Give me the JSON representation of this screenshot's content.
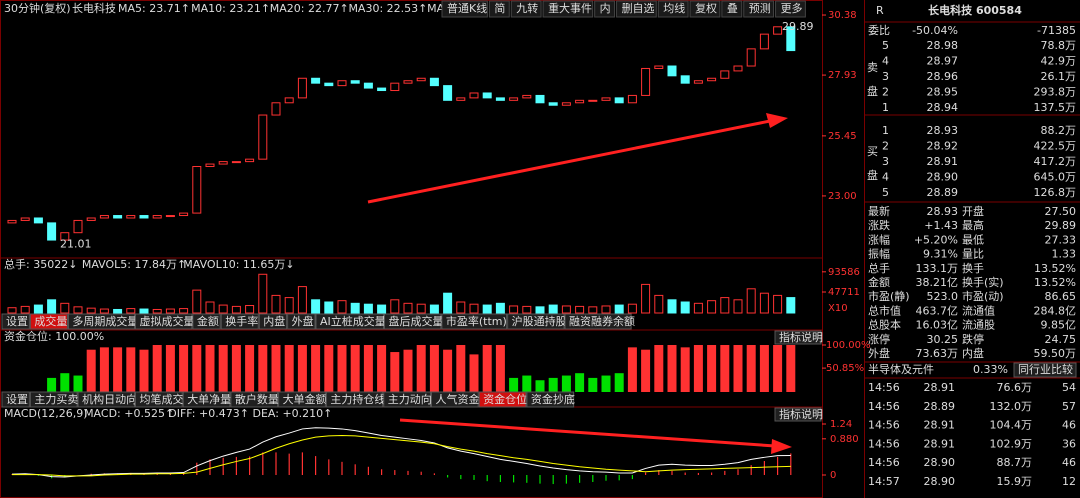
{
  "header": {
    "period": "30分钟(复权)",
    "stock": "长电科技",
    "ma_labels": [
      "MA5: 23.71↑",
      "MA10: 23.21↑",
      "MA20: 22.77↑",
      "MA30: 22.53↑",
      "MA60: 22"
    ],
    "ma_colors": [
      "#ffffff",
      "#ffff00",
      "#ff00ff",
      "#00ff00",
      "#4aa3ff"
    ],
    "buttons": [
      "普通K线",
      "简",
      "九转",
      "重大事件",
      "内",
      "删自选",
      "均线",
      "复权",
      "叠",
      "预测",
      "更多"
    ]
  },
  "price_chart": {
    "type": "candlestick",
    "ylim": [
      20.59,
      30.83
    ],
    "yticks": [
      30.38,
      27.93,
      25.45,
      {
        "value": 23,
        "label": "23.00"
      }
    ],
    "high": 29.89,
    "low": 21.01,
    "up_color": "#ff3232",
    "down_color": "#54ffff",
    "closes": [
      22.0,
      22.1,
      21.9,
      21.2,
      21.5,
      22.0,
      22.1,
      22.2,
      22.1,
      22.2,
      22.1,
      22.2,
      22.2,
      22.3,
      24.2,
      24.3,
      24.4,
      24.4,
      24.5,
      26.3,
      26.8,
      27.0,
      27.8,
      27.6,
      27.5,
      27.7,
      27.6,
      27.4,
      27.3,
      27.6,
      27.7,
      27.8,
      27.5,
      26.9,
      27.0,
      27.2,
      27.0,
      26.9,
      27.0,
      27.1,
      26.8,
      26.7,
      26.8,
      26.9,
      26.9,
      27.0,
      26.8,
      27.1,
      28.2,
      28.3,
      27.9,
      27.6,
      27.7,
      27.8,
      28.1,
      28.3,
      29.0,
      29.6,
      29.9,
      28.93
    ],
    "first_open": 21.9
  },
  "volume_chart": {
    "type": "bar",
    "labels": [
      "总手: 35022↓",
      "MAVOL5: 17.84万↑",
      "MAVOL10: 11.65万↓"
    ],
    "label_colors": [
      "#ff3232",
      "#ffff00",
      "#ffffff"
    ],
    "ylim": [
      0,
      100000
    ],
    "yticks": [
      93586,
      47711
    ],
    "unit": "X10",
    "values": [
      12000,
      15000,
      18000,
      30000,
      22000,
      14000,
      11000,
      9000,
      8000,
      10000,
      9000,
      8000,
      9000,
      10000,
      52000,
      25000,
      18000,
      15000,
      17000,
      88000,
      40000,
      35000,
      60000,
      30000,
      25000,
      28000,
      22000,
      20000,
      18000,
      30000,
      22000,
      20000,
      18000,
      45000,
      25000,
      20000,
      18000,
      22000,
      16000,
      15000,
      14000,
      18000,
      16000,
      15000,
      14000,
      16000,
      18000,
      20000,
      65000,
      40000,
      30000,
      25000,
      22000,
      28000,
      35000,
      30000,
      55000,
      45000,
      40000,
      35022
    ],
    "tabs": [
      "设置",
      "成交量",
      "多周期成交量",
      "虚拟成交量",
      "金额",
      "换手率",
      "内盘",
      "外盘",
      "AI立桩成交量",
      "盘后成交量",
      "市盈率(ttm)",
      "沪股通持股",
      "融资融券余额"
    ],
    "active_tab": 1
  },
  "fund_chart": {
    "type": "bar",
    "label": "资金仓位: 100.00%",
    "help": "指标说明",
    "ylim": [
      0,
      100
    ],
    "yticks": [
      {
        "value": 100,
        "label": "100.00%"
      },
      {
        "value": 50.85,
        "label": "50.85%"
      }
    ],
    "high_color": "#ff3232",
    "low_color": "#00e000",
    "values": [
      0,
      0,
      0,
      30,
      40,
      35,
      90,
      95,
      95,
      95,
      90,
      100,
      100,
      100,
      100,
      100,
      100,
      100,
      100,
      100,
      100,
      100,
      100,
      100,
      100,
      100,
      100,
      100,
      100,
      85,
      90,
      100,
      100,
      90,
      100,
      80,
      100,
      100,
      30,
      35,
      25,
      30,
      35,
      40,
      30,
      35,
      40,
      95,
      90,
      100,
      100,
      95,
      100,
      100,
      100,
      100,
      100,
      100,
      100,
      100
    ],
    "tabs": [
      "设置",
      "主力买卖",
      "机构日动向",
      "均笔成交",
      "大单净量",
      "散户数量",
      "大单金额",
      "主力持仓线",
      "主力动向",
      "人气资金",
      "资金仓位",
      "资金抄底"
    ],
    "active_tab": 10
  },
  "macd_chart": {
    "type": "line",
    "labels": [
      "MACD(12,26,9)",
      "MACD: +0.525↑",
      "DIFF: +0.473↑",
      "DEA: +0.210↑"
    ],
    "label_colors": [
      "#ffffff",
      "#ff3232",
      "#ffffff",
      "#ffff00"
    ],
    "help": "指标说明",
    "ylim": [
      -0.535,
      1.386
    ],
    "yticks": [
      1.24,
      {
        "value": 0.88,
        "label": "0.880"
      },
      0
    ],
    "histogram": [
      0.02,
      0.03,
      -0.02,
      -0.08,
      -0.06,
      0.0,
      0.03,
      0.04,
      0.04,
      0.05,
      0.04,
      0.04,
      0.04,
      0.05,
      0.3,
      0.38,
      0.42,
      0.44,
      0.45,
      0.55,
      0.55,
      0.52,
      0.55,
      0.46,
      0.38,
      0.32,
      0.26,
      0.2,
      0.14,
      0.12,
      0.1,
      0.08,
      0.04,
      -0.06,
      -0.1,
      -0.12,
      -0.15,
      -0.17,
      -0.18,
      -0.19,
      -0.21,
      -0.22,
      -0.21,
      -0.19,
      -0.17,
      -0.14,
      -0.13,
      -0.1,
      0.06,
      0.12,
      0.1,
      0.06,
      0.05,
      0.06,
      0.1,
      0.14,
      0.24,
      0.34,
      0.44,
      0.525
    ],
    "series": [
      {
        "name": "DIFF",
        "color": "#ffffff",
        "values": [
          0.02,
          0.03,
          0.01,
          -0.04,
          -0.05,
          -0.02,
          0.0,
          0.02,
          0.03,
          0.04,
          0.04,
          0.05,
          0.05,
          0.06,
          0.22,
          0.35,
          0.46,
          0.55,
          0.63,
          0.8,
          0.93,
          1.02,
          1.12,
          1.15,
          1.14,
          1.12,
          1.08,
          1.02,
          0.96,
          0.92,
          0.88,
          0.84,
          0.78,
          0.66,
          0.58,
          0.52,
          0.45,
          0.38,
          0.33,
          0.28,
          0.22,
          0.17,
          0.13,
          0.1,
          0.08,
          0.07,
          0.05,
          0.05,
          0.16,
          0.24,
          0.26,
          0.24,
          0.23,
          0.23,
          0.26,
          0.3,
          0.38,
          0.43,
          0.47,
          0.473
        ]
      },
      {
        "name": "DEA",
        "color": "#ffff00",
        "values": [
          0.01,
          0.01,
          0.01,
          0.0,
          -0.02,
          -0.02,
          -0.02,
          0.0,
          0.01,
          0.02,
          0.02,
          0.03,
          0.03,
          0.04,
          0.07,
          0.16,
          0.25,
          0.33,
          0.4,
          0.52,
          0.65,
          0.76,
          0.85,
          0.92,
          0.95,
          0.96,
          0.95,
          0.92,
          0.89,
          0.86,
          0.83,
          0.8,
          0.76,
          0.69,
          0.63,
          0.58,
          0.52,
          0.47,
          0.42,
          0.38,
          0.33,
          0.28,
          0.24,
          0.2,
          0.17,
          0.14,
          0.12,
          0.1,
          0.08,
          0.1,
          0.12,
          0.13,
          0.14,
          0.15,
          0.16,
          0.17,
          0.18,
          0.19,
          0.2,
          0.21
        ]
      }
    ]
  },
  "quote": {
    "flag": "R",
    "title": "长电科技 600584",
    "ratio_label": "委比",
    "ratio": "-50.04%",
    "ratio_diff": "-71385",
    "sell_side": [
      "卖",
      "盘"
    ],
    "buy_side": [
      "买",
      "盘"
    ],
    "sell": [
      [
        "5",
        "28.98",
        "78.8万"
      ],
      [
        "4",
        "28.97",
        "42.9万"
      ],
      [
        "3",
        "28.96",
        "26.1万"
      ],
      [
        "2",
        "28.95",
        "293.8万"
      ],
      [
        "1",
        "28.94",
        "137.5万"
      ]
    ],
    "buy": [
      [
        "1",
        "28.93",
        "88.2万"
      ],
      [
        "2",
        "28.92",
        "422.5万"
      ],
      [
        "3",
        "28.91",
        "417.2万"
      ],
      [
        "4",
        "28.90",
        "645.0万"
      ],
      [
        "5",
        "28.89",
        "126.8万"
      ]
    ],
    "stats": [
      [
        "最新",
        "28.93",
        "开盘",
        "27.50"
      ],
      [
        "涨跌",
        "+1.43",
        "最高",
        "29.89"
      ],
      [
        "涨幅",
        "+5.20%",
        "最低",
        "27.33"
      ],
      [
        "振幅",
        "9.31%",
        "量比",
        "1.33"
      ],
      [
        "总手",
        "133.1万",
        "换手",
        "13.52%"
      ],
      [
        "金额",
        "38.21亿",
        "换手(实)",
        "13.52%"
      ],
      [
        "市盈(静)",
        "523.0",
        "市盈(动)",
        "86.65"
      ],
      [
        "总市值",
        "463.7亿",
        "流通值",
        "284.8亿"
      ],
      [
        "总股本",
        "16.03亿",
        "流通股",
        "9.85亿"
      ],
      [
        "涨停",
        "30.25",
        "跌停",
        "24.75"
      ],
      [
        "外盘",
        "73.63万",
        "内盘",
        "59.50万"
      ]
    ],
    "stat_colors": [
      [
        "#ff3232",
        "#ffffff"
      ],
      [
        "#ff3232",
        "#ff3232"
      ],
      [
        "#ff3232",
        "#ff3232"
      ],
      [
        "#ffffff",
        "#ff3232"
      ],
      [
        "#ffff00",
        "#ffff00"
      ],
      [
        "#ffff00",
        "#ffff00"
      ],
      [
        "#ffffff",
        "#ffffff"
      ],
      [
        "#ffff00",
        "#ffff00"
      ],
      [
        "#ffff00",
        "#ffff00"
      ],
      [
        "#ff3232",
        "#00e000"
      ],
      [
        "#ff3232",
        "#00e000"
      ]
    ],
    "industry": "半导体及元件",
    "industry_change": "0.33%",
    "compare": "同行业比较",
    "trades": [
      [
        "14:56",
        "28.91",
        "76.6万",
        "54"
      ],
      [
        "14:56",
        "28.89",
        "132.0万",
        "57"
      ],
      [
        "14:56",
        "28.91",
        "104.4万",
        "46"
      ],
      [
        "14:56",
        "28.91",
        "102.9万",
        "36"
      ],
      [
        "14:56",
        "28.90",
        "88.7万",
        "46"
      ],
      [
        "14:57",
        "28.90",
        "15.9万",
        "12"
      ]
    ]
  }
}
